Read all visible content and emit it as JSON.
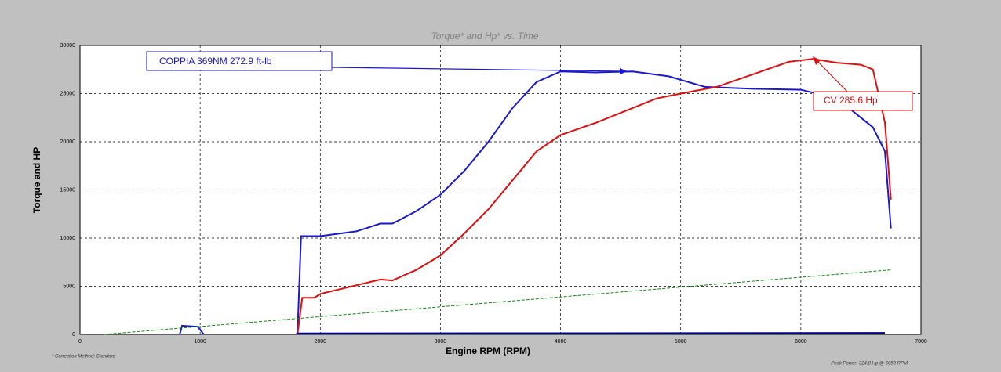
{
  "chart_data": {
    "type": "line",
    "title": "Torque* and Hp* vs. Time",
    "x_label": "Engine RPM (RPM)",
    "y_label": "Torque and HP",
    "footnote": "* Correction Method: Standard",
    "peak_note": "Peak Power: 324.8 Hp @ 6050 RPM",
    "annotations": [
      {
        "text": "COPPIA 369NM 272.9 ft-lb",
        "color": "#1a1acc"
      },
      {
        "text": "CV  285.6 Hp",
        "color": "#dd1111"
      }
    ],
    "xlim": [
      0,
      7000
    ],
    "xticks": [
      0,
      1000,
      2000,
      3000,
      4000,
      5000,
      6000,
      7000
    ],
    "ylim": [
      0,
      30000
    ],
    "yticks": [
      0,
      5000,
      10000,
      15000,
      20000,
      25000,
      30000
    ],
    "grid": true,
    "series": [
      {
        "color": "#1a1acc",
        "x": [
          830,
          850,
          980,
          1030,
          1400,
          1810,
          1840,
          2000,
          2300,
          2500,
          2600,
          2800,
          3000,
          3200,
          3400,
          3600,
          3800,
          4000,
          4300,
          4600,
          4900,
          5200,
          5600,
          6000,
          6200,
          6400,
          6600,
          6700,
          6750
        ],
        "values": [
          0,
          900,
          800,
          0,
          null,
          0,
          10200,
          10200,
          10700,
          11500,
          11500,
          12800,
          14500,
          17000,
          20000,
          23500,
          26200,
          27300,
          27200,
          27300,
          26800,
          25700,
          25500,
          25400,
          24800,
          23500,
          21500,
          19000,
          11000
        ]
      },
      {
        "color": "#dd1111",
        "x": [
          1810,
          1850,
          1950,
          2000,
          2200,
          2500,
          2600,
          2800,
          3000,
          3200,
          3400,
          3600,
          3800,
          4000,
          4300,
          4600,
          4800,
          5000,
          5300,
          5600,
          5900,
          6100,
          6300,
          6500,
          6600,
          6700,
          6750
        ],
        "values": [
          0,
          3800,
          3800,
          4200,
          4800,
          5700,
          5600,
          6700,
          8200,
          10500,
          13000,
          16000,
          19000,
          20700,
          22000,
          23500,
          24500,
          25000,
          25700,
          27000,
          28300,
          28600,
          28200,
          28000,
          27500,
          22000,
          14000
        ]
      },
      {
        "color": "#118811",
        "dash": true,
        "x": [
          200,
          6750
        ],
        "values": [
          0,
          6700
        ]
      },
      {
        "color": "#000088",
        "x": [
          1800,
          6700
        ],
        "values": [
          100,
          150
        ]
      }
    ]
  }
}
